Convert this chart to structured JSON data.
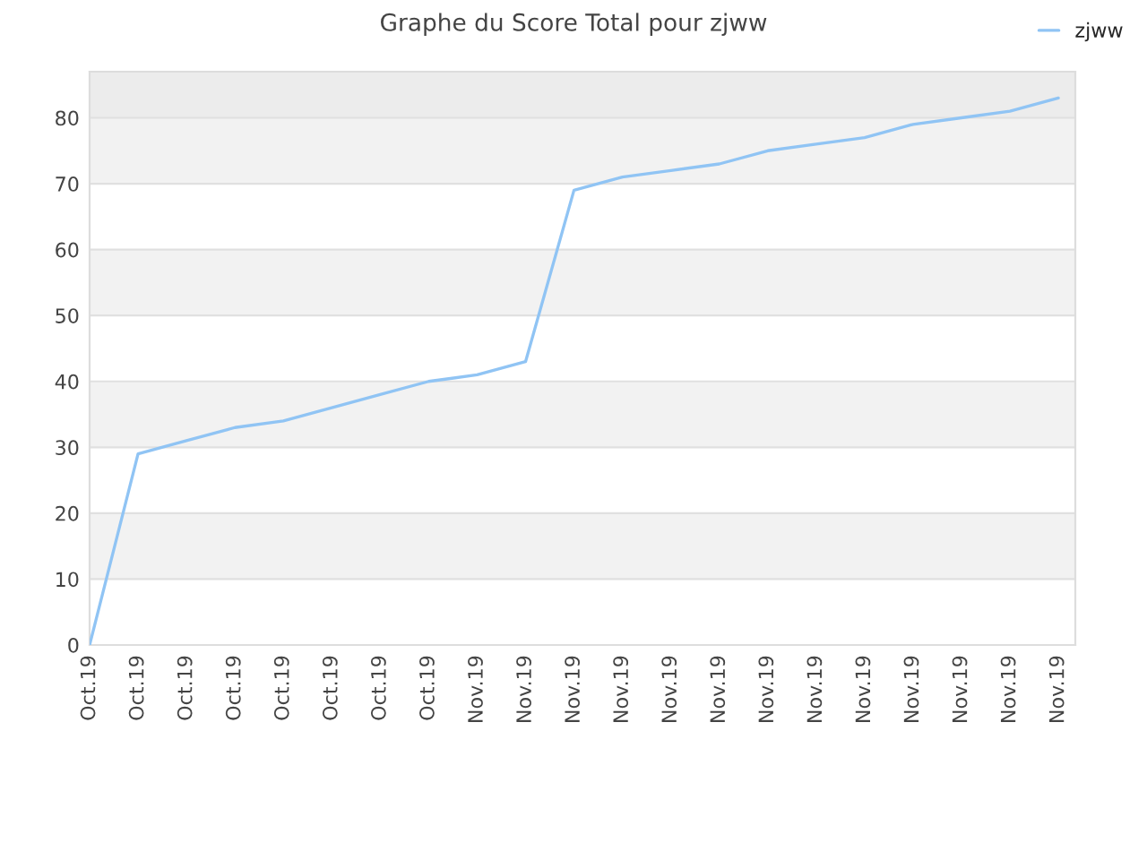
{
  "chart_data": {
    "type": "line",
    "title": "Graphe du Score Total pour zjww",
    "categories": [
      "Oct.19",
      "Oct.19",
      "Oct.19",
      "Oct.19",
      "Oct.19",
      "Oct.19",
      "Oct.19",
      "Oct.19",
      "Nov.19",
      "Nov.19",
      "Nov.19",
      "Nov.19",
      "Nov.19",
      "Nov.19",
      "Nov.19",
      "Nov.19",
      "Nov.19",
      "Nov.19",
      "Nov.19",
      "Nov.19",
      "Nov.19"
    ],
    "series": [
      {
        "name": "zjww",
        "color": "#90c4f4",
        "values": [
          0,
          29,
          31,
          33,
          34,
          36,
          38,
          40,
          41,
          43,
          69,
          71,
          72,
          73,
          75,
          76,
          77,
          79,
          80,
          81,
          83
        ]
      }
    ],
    "ylim": [
      0,
      87
    ],
    "yticks": [
      0,
      10,
      20,
      30,
      40,
      50,
      60,
      70,
      80
    ],
    "bands": [
      {
        "axis": "y",
        "from": 10,
        "to": 20,
        "color": "#f2f2f2"
      },
      {
        "axis": "y",
        "from": 30,
        "to": 40,
        "color": "#f2f2f2"
      },
      {
        "axis": "y",
        "from": 50,
        "to": 60,
        "color": "#f2f2f2"
      },
      {
        "axis": "y",
        "from": 70,
        "to": 80,
        "color": "#f2f2f2"
      },
      {
        "axis": "y",
        "from": 80,
        "to": 87,
        "color": "#ececec"
      }
    ],
    "grid": "y",
    "legend": "top right",
    "marker": "none",
    "line_style": "solid"
  }
}
